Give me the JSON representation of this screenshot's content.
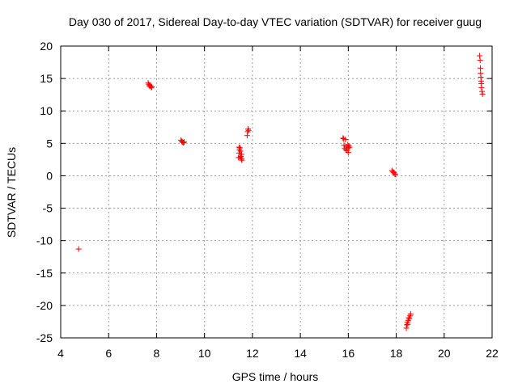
{
  "chart_data": {
    "type": "scatter",
    "title": "Day 030 of 2017, Sidereal Day-to-day VTEC variation (SDTVAR) for receiver guug",
    "xlabel": "GPS time / hours",
    "ylabel": "SDTVAR / TECUs",
    "xlim": [
      4,
      22
    ],
    "ylim": [
      -25,
      20
    ],
    "xticks": [
      4,
      6,
      8,
      10,
      12,
      14,
      16,
      18,
      20,
      22
    ],
    "yticks": [
      -25,
      -20,
      -15,
      -10,
      -5,
      0,
      5,
      10,
      15,
      20
    ],
    "xtick_labels": [
      "4",
      "6",
      "8",
      "10",
      "12",
      "14",
      "16",
      "18",
      "20",
      "22"
    ],
    "ytick_labels": [
      "-25",
      "-20",
      "-15",
      "-10",
      "-5",
      "0",
      "5",
      "10",
      "15",
      "20"
    ],
    "grid": true,
    "marker": "+",
    "color": "#ff0000",
    "series": [
      {
        "name": "SDTVAR",
        "x": [
          4.75,
          7.65,
          7.68,
          7.7,
          7.72,
          7.75,
          7.78,
          7.8,
          9.02,
          9.05,
          9.08,
          9.12,
          9.15,
          11.42,
          11.44,
          11.46,
          11.48,
          11.5,
          11.52,
          11.54,
          11.56,
          11.44,
          11.5,
          11.55,
          11.78,
          11.8,
          11.82,
          11.84,
          15.78,
          15.8,
          15.82,
          15.85,
          15.88,
          15.92,
          15.95,
          15.98,
          16.0,
          16.02,
          16.05,
          15.9,
          16.0,
          17.82,
          17.86,
          17.9,
          17.94,
          17.96,
          18.42,
          18.44,
          18.46,
          18.48,
          18.5,
          18.52,
          18.55,
          18.58,
          18.6,
          21.48,
          21.5,
          21.51,
          21.52,
          21.53,
          21.54,
          21.55,
          21.56,
          21.58,
          21.6
        ],
        "y": [
          -11.3,
          14.3,
          14.1,
          13.9,
          13.8,
          13.9,
          13.6,
          13.7,
          5.5,
          5.3,
          5.2,
          5.1,
          5.2,
          2.8,
          3.5,
          4.0,
          4.3,
          3.8,
          3.0,
          2.6,
          2.4,
          4.4,
          2.9,
          3.3,
          6.2,
          6.8,
          7.2,
          7.0,
          5.8,
          5.7,
          4.7,
          4.2,
          5.6,
          4.5,
          3.9,
          4.8,
          4.3,
          4.6,
          4.4,
          4.0,
          3.6,
          0.8,
          0.6,
          0.5,
          0.3,
          0.2,
          -23.5,
          -23.0,
          -22.6,
          -22.9,
          -22.3,
          -21.9,
          -22.0,
          -21.6,
          -21.3,
          18.5,
          17.8,
          16.6,
          15.8,
          15.2,
          14.6,
          14.2,
          13.6,
          13.0,
          12.6
        ]
      }
    ]
  }
}
